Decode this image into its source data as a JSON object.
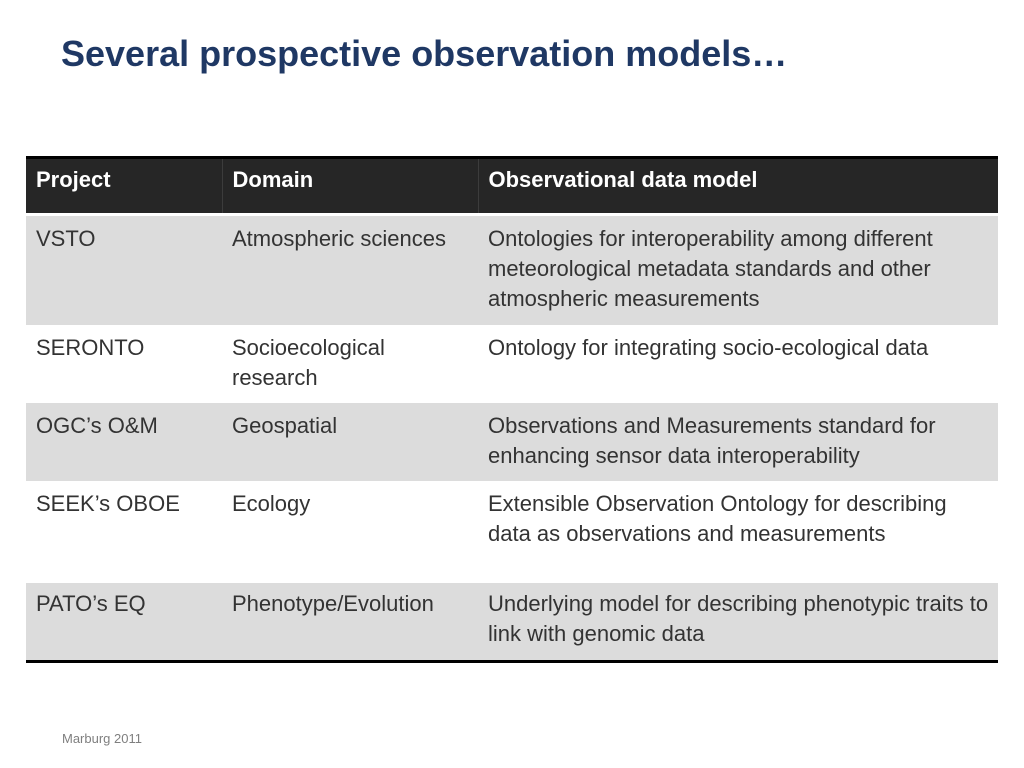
{
  "slide": {
    "title": "Several prospective observation models…",
    "footer": "Marburg 2011"
  },
  "table": {
    "headers": [
      "Project",
      "Domain",
      "Observational data model"
    ],
    "rows": [
      {
        "project": "VSTO",
        "domain": "Atmospheric sciences",
        "model": "Ontologies for interoperability among different meteorological metadata standards and other atmospheric measurements"
      },
      {
        "project": "SERONTO",
        "domain": "Socioecological research",
        "model": "Ontology for integrating socio-ecological data"
      },
      {
        "project": "OGC’s O&M",
        "domain": "Geospatial",
        "model": "Observations and Measurements standard for enhancing sensor data interoperability"
      },
      {
        "project": "SEEK’s OBOE",
        "domain": "Ecology",
        "model": "Extensible Observation Ontology for describing data as observations and measurements"
      },
      {
        "project": "PATO’s EQ",
        "domain": "Phenotype/Evolution",
        "model": "Underlying model for describing phenotypic traits to link with genomic data"
      }
    ]
  }
}
